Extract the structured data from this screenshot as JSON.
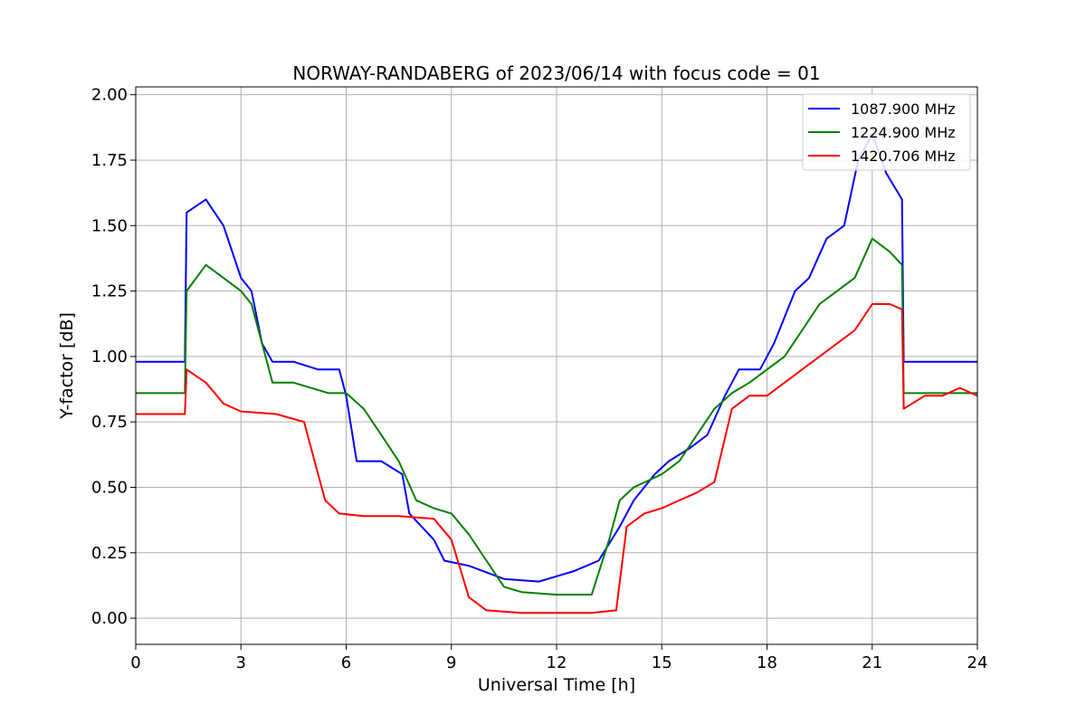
{
  "chart_data": {
    "type": "line",
    "title": "NORWAY-RANDABERG of 2023/06/14 with focus code = 01",
    "xlabel": "Universal Time [h]",
    "ylabel": "Y-factor [dB]",
    "xlim": [
      0,
      24
    ],
    "ylim": [
      -0.1,
      2.03
    ],
    "xticks": [
      0,
      3,
      6,
      9,
      12,
      15,
      18,
      21,
      24
    ],
    "xtick_labels": [
      "0",
      "3",
      "6",
      "9",
      "12",
      "15",
      "18",
      "21",
      "24"
    ],
    "yticks": [
      0.0,
      0.25,
      0.5,
      0.75,
      1.0,
      1.25,
      1.5,
      1.75,
      2.0
    ],
    "ytick_labels": [
      "0.00",
      "0.25",
      "0.50",
      "0.75",
      "1.00",
      "1.25",
      "1.50",
      "1.75",
      "2.00"
    ],
    "grid": true,
    "legend_position": "top-right",
    "series": [
      {
        "name": "1087.900 MHz",
        "color": "#0000ff",
        "x": [
          0,
          1.4,
          1.45,
          2.0,
          2.5,
          3.0,
          3.3,
          3.6,
          3.9,
          4.5,
          5.2,
          5.8,
          6.0,
          6.3,
          7.0,
          7.6,
          7.8,
          8.5,
          8.8,
          9.5,
          10.5,
          11.5,
          12.5,
          13.2,
          13.8,
          14.2,
          14.8,
          15.2,
          15.8,
          16.3,
          16.8,
          17.2,
          17.8,
          18.2,
          18.8,
          19.2,
          19.7,
          20.2,
          20.6,
          21.0,
          21.4,
          21.85,
          21.9,
          22.5,
          23.5,
          24
        ],
        "y": [
          0.98,
          0.98,
          1.55,
          1.6,
          1.5,
          1.3,
          1.25,
          1.05,
          0.98,
          0.98,
          0.95,
          0.95,
          0.85,
          0.6,
          0.6,
          0.55,
          0.4,
          0.3,
          0.22,
          0.2,
          0.15,
          0.14,
          0.18,
          0.22,
          0.35,
          0.45,
          0.55,
          0.6,
          0.65,
          0.7,
          0.85,
          0.95,
          0.95,
          1.05,
          1.25,
          1.3,
          1.45,
          1.5,
          1.75,
          1.85,
          1.7,
          1.6,
          0.98,
          0.98,
          0.98,
          0.98
        ]
      },
      {
        "name": "1224.900 MHz",
        "color": "#008000",
        "x": [
          0,
          1.4,
          1.45,
          2.0,
          2.5,
          3.0,
          3.3,
          3.6,
          3.9,
          4.5,
          5.5,
          6.0,
          6.5,
          7.0,
          7.5,
          8.0,
          8.5,
          9.0,
          9.5,
          10.0,
          10.5,
          11.0,
          12.0,
          13.0,
          13.5,
          13.8,
          14.2,
          15.0,
          15.5,
          16.0,
          16.5,
          17.0,
          17.5,
          18.0,
          18.5,
          19.0,
          19.5,
          20.0,
          20.5,
          21.0,
          21.5,
          21.85,
          21.9,
          22.5,
          23.5,
          24
        ],
        "y": [
          0.86,
          0.86,
          1.25,
          1.35,
          1.3,
          1.25,
          1.2,
          1.05,
          0.9,
          0.9,
          0.86,
          0.86,
          0.8,
          0.7,
          0.6,
          0.45,
          0.42,
          0.4,
          0.32,
          0.22,
          0.12,
          0.1,
          0.09,
          0.09,
          0.3,
          0.45,
          0.5,
          0.55,
          0.6,
          0.7,
          0.8,
          0.86,
          0.9,
          0.95,
          1.0,
          1.1,
          1.2,
          1.25,
          1.3,
          1.45,
          1.4,
          1.35,
          0.86,
          0.86,
          0.86,
          0.86
        ]
      },
      {
        "name": "1420.706 MHz",
        "color": "#ff0000",
        "x": [
          0,
          1.4,
          1.45,
          2.0,
          2.5,
          3.0,
          4.0,
          4.8,
          5.1,
          5.4,
          5.8,
          6.5,
          7.5,
          8.5,
          9.0,
          9.5,
          10.0,
          11.0,
          12.0,
          13.0,
          13.7,
          14.0,
          14.5,
          15.0,
          15.5,
          16.0,
          16.5,
          17.0,
          17.5,
          18.0,
          18.5,
          19.0,
          19.5,
          20.0,
          20.5,
          21.0,
          21.5,
          21.85,
          21.9,
          22.5,
          23.0,
          23.5,
          24
        ],
        "y": [
          0.78,
          0.78,
          0.95,
          0.9,
          0.82,
          0.79,
          0.78,
          0.75,
          0.6,
          0.45,
          0.4,
          0.39,
          0.39,
          0.38,
          0.3,
          0.08,
          0.03,
          0.02,
          0.02,
          0.02,
          0.03,
          0.35,
          0.4,
          0.42,
          0.45,
          0.48,
          0.52,
          0.8,
          0.85,
          0.85,
          0.9,
          0.95,
          1.0,
          1.05,
          1.1,
          1.2,
          1.2,
          1.18,
          0.8,
          0.85,
          0.85,
          0.88,
          0.85
        ]
      }
    ]
  }
}
